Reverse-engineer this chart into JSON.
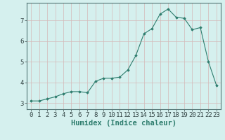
{
  "xlabel": "Humidex (Indice chaleur)",
  "x": [
    0,
    1,
    2,
    3,
    4,
    5,
    6,
    7,
    8,
    9,
    10,
    11,
    12,
    13,
    14,
    15,
    16,
    17,
    18,
    19,
    20,
    21,
    22,
    23
  ],
  "y": [
    3.1,
    3.1,
    3.2,
    3.3,
    3.45,
    3.55,
    3.55,
    3.5,
    4.05,
    4.2,
    4.2,
    4.25,
    4.6,
    5.3,
    6.35,
    6.6,
    7.3,
    7.55,
    7.15,
    7.1,
    6.55,
    6.65,
    5.0,
    3.85
  ],
  "line_color": "#2e7d6e",
  "marker": "D",
  "marker_size": 1.8,
  "bg_color": "#d5f0ee",
  "grid_color": "#d4b8b8",
  "ylim": [
    2.7,
    7.85
  ],
  "xlim": [
    -0.5,
    23.5
  ],
  "yticks": [
    3,
    4,
    5,
    6,
    7
  ],
  "xticks": [
    0,
    1,
    2,
    3,
    4,
    5,
    6,
    7,
    8,
    9,
    10,
    11,
    12,
    13,
    14,
    15,
    16,
    17,
    18,
    19,
    20,
    21,
    22,
    23
  ],
  "tick_fontsize": 6.5,
  "xlabel_fontsize": 7.5
}
